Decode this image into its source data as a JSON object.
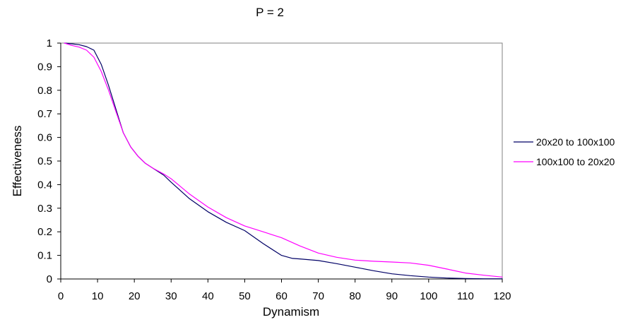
{
  "chart_data": {
    "type": "line",
    "title": "P = 2",
    "xlabel": "Dynamism",
    "ylabel": "Effectiveness",
    "xlim": [
      0,
      120
    ],
    "ylim": [
      0,
      1
    ],
    "x_ticks": [
      "0",
      "10",
      "20",
      "30",
      "40",
      "50",
      "60",
      "70",
      "80",
      "90",
      "100",
      "110",
      "120"
    ],
    "y_ticks": [
      "0",
      "0.1",
      "0.2",
      "0.3",
      "0.4",
      "0.5",
      "0.6",
      "0.7",
      "0.8",
      "0.9",
      "1"
    ],
    "grid": false,
    "legend_position": "right",
    "series": [
      {
        "name": "20x20 to 100x100",
        "color": "#000066",
        "x": [
          1,
          3,
          5,
          7,
          9,
          11,
          13,
          15,
          17,
          19,
          21,
          23,
          25,
          28,
          30,
          35,
          40,
          45,
          50,
          55,
          60,
          63,
          65,
          70,
          75,
          80,
          85,
          90,
          95,
          100,
          105,
          110,
          115,
          120
        ],
        "y": [
          1.0,
          0.997,
          0.993,
          0.985,
          0.97,
          0.91,
          0.82,
          0.72,
          0.62,
          0.56,
          0.52,
          0.49,
          0.47,
          0.44,
          0.41,
          0.34,
          0.285,
          0.24,
          0.205,
          0.15,
          0.1,
          0.087,
          0.085,
          0.078,
          0.065,
          0.05,
          0.035,
          0.022,
          0.014,
          0.008,
          0.004,
          0.002,
          0.001,
          0.001
        ]
      },
      {
        "name": "100x100 to 20x20",
        "color": "#ff00ff",
        "x": [
          1,
          3,
          5,
          7,
          9,
          11,
          13,
          15,
          17,
          19,
          21,
          23,
          25,
          28,
          30,
          35,
          40,
          45,
          50,
          55,
          60,
          65,
          70,
          75,
          80,
          85,
          90,
          95,
          100,
          105,
          110,
          115,
          120
        ],
        "y": [
          1.0,
          0.99,
          0.983,
          0.97,
          0.94,
          0.88,
          0.8,
          0.71,
          0.62,
          0.56,
          0.52,
          0.49,
          0.47,
          0.445,
          0.425,
          0.36,
          0.305,
          0.26,
          0.225,
          0.2,
          0.175,
          0.14,
          0.11,
          0.092,
          0.08,
          0.075,
          0.072,
          0.068,
          0.058,
          0.042,
          0.025,
          0.016,
          0.008
        ]
      }
    ]
  }
}
